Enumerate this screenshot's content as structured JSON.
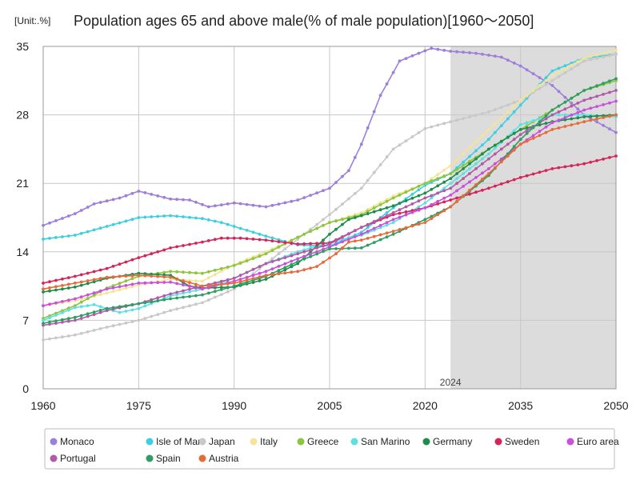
{
  "chart_data": {
    "type": "line",
    "unit_label": "[Unit:.%]",
    "title": "Population ages 65 and above male(% of male population)[1960～2050]",
    "xlabel": "",
    "ylabel": "",
    "xlim": [
      1960,
      2050
    ],
    "ylim": [
      0,
      35
    ],
    "x_ticks": [
      1960,
      1975,
      1990,
      2005,
      2020,
      2035,
      2050
    ],
    "y_ticks": [
      0,
      7,
      14,
      21,
      28,
      35
    ],
    "grid": true,
    "projection_start": 2024,
    "projection_label": "2024",
    "legend_position": "bottom",
    "series": [
      {
        "name": "Monaco",
        "color": "#9d7fdb",
        "points": [
          [
            1960,
            16.7
          ],
          [
            1965,
            17.9
          ],
          [
            1968,
            18.9
          ],
          [
            1972,
            19.5
          ],
          [
            1975,
            20.2
          ],
          [
            1980,
            19.4
          ],
          [
            1983,
            19.3
          ],
          [
            1986,
            18.6
          ],
          [
            1990,
            19.0
          ],
          [
            1995,
            18.6
          ],
          [
            2000,
            19.3
          ],
          [
            2005,
            20.5
          ],
          [
            2008,
            22.3
          ],
          [
            2010,
            25.0
          ],
          [
            2013,
            30.0
          ],
          [
            2016,
            33.5
          ],
          [
            2019,
            34.3
          ],
          [
            2021,
            34.8
          ],
          [
            2024,
            34.5
          ],
          [
            2028,
            34.3
          ],
          [
            2032,
            33.9
          ],
          [
            2035,
            33.0
          ],
          [
            2040,
            31.0
          ],
          [
            2045,
            28.0
          ],
          [
            2050,
            26.2
          ]
        ]
      },
      {
        "name": "Isle of Man",
        "color": "#3ccfe0",
        "points": [
          [
            1960,
            15.3
          ],
          [
            1965,
            15.7
          ],
          [
            1970,
            16.6
          ],
          [
            1975,
            17.5
          ],
          [
            1980,
            17.7
          ],
          [
            1985,
            17.4
          ],
          [
            1988,
            17.0
          ],
          [
            1990,
            16.6
          ],
          [
            1995,
            15.6
          ],
          [
            2000,
            14.7
          ],
          [
            2005,
            14.6
          ],
          [
            2010,
            16.0
          ],
          [
            2015,
            18.5
          ],
          [
            2020,
            20.8
          ],
          [
            2024,
            22.0
          ],
          [
            2030,
            25.5
          ],
          [
            2035,
            29.0
          ],
          [
            2040,
            32.5
          ],
          [
            2045,
            33.8
          ],
          [
            2050,
            34.2
          ]
        ]
      },
      {
        "name": "Japan",
        "color": "#c8c8c8",
        "points": [
          [
            1960,
            5.0
          ],
          [
            1965,
            5.5
          ],
          [
            1970,
            6.3
          ],
          [
            1975,
            7.0
          ],
          [
            1980,
            8.0
          ],
          [
            1985,
            8.8
          ],
          [
            1990,
            10.2
          ],
          [
            1995,
            12.8
          ],
          [
            2000,
            15.3
          ],
          [
            2005,
            17.8
          ],
          [
            2010,
            20.5
          ],
          [
            2015,
            24.5
          ],
          [
            2020,
            26.6
          ],
          [
            2024,
            27.3
          ],
          [
            2030,
            28.3
          ],
          [
            2035,
            29.5
          ],
          [
            2040,
            31.5
          ],
          [
            2045,
            33.5
          ],
          [
            2050,
            34.2
          ]
        ]
      },
      {
        "name": "Italy",
        "color": "#f3e49a",
        "points": [
          [
            1960,
            8.5
          ],
          [
            1965,
            9.0
          ],
          [
            1970,
            9.8
          ],
          [
            1975,
            10.6
          ],
          [
            1980,
            11.2
          ],
          [
            1985,
            11.0
          ],
          [
            1990,
            12.7
          ],
          [
            1995,
            14.0
          ],
          [
            2000,
            15.5
          ],
          [
            2005,
            17.0
          ],
          [
            2010,
            18.0
          ],
          [
            2015,
            19.7
          ],
          [
            2020,
            21.0
          ],
          [
            2024,
            22.8
          ],
          [
            2030,
            26.5
          ],
          [
            2035,
            29.5
          ],
          [
            2040,
            32.0
          ],
          [
            2045,
            33.8
          ],
          [
            2050,
            34.6
          ]
        ]
      },
      {
        "name": "Greece",
        "color": "#8cc63f",
        "points": [
          [
            1960,
            7.2
          ],
          [
            1965,
            8.5
          ],
          [
            1970,
            10.3
          ],
          [
            1975,
            11.5
          ],
          [
            1980,
            12.0
          ],
          [
            1985,
            11.8
          ],
          [
            1990,
            12.6
          ],
          [
            1995,
            13.8
          ],
          [
            2000,
            15.5
          ],
          [
            2005,
            17.0
          ],
          [
            2010,
            17.8
          ],
          [
            2015,
            19.5
          ],
          [
            2020,
            21.0
          ],
          [
            2024,
            22.0
          ],
          [
            2030,
            24.5
          ],
          [
            2035,
            26.5
          ],
          [
            2040,
            28.5
          ],
          [
            2045,
            30.5
          ],
          [
            2050,
            31.5
          ]
        ]
      },
      {
        "name": "San Marino",
        "color": "#5ee0e0",
        "points": [
          [
            1960,
            7.0
          ],
          [
            1965,
            8.3
          ],
          [
            1968,
            8.6
          ],
          [
            1972,
            7.8
          ],
          [
            1975,
            8.2
          ],
          [
            1980,
            9.5
          ],
          [
            1985,
            10.2
          ],
          [
            1990,
            11.3
          ],
          [
            1995,
            12.8
          ],
          [
            2000,
            14.0
          ],
          [
            2005,
            15.0
          ],
          [
            2010,
            15.7
          ],
          [
            2015,
            17.0
          ],
          [
            2020,
            19.0
          ],
          [
            2024,
            21.0
          ],
          [
            2030,
            24.0
          ],
          [
            2035,
            27.0
          ],
          [
            2040,
            28.0
          ],
          [
            2045,
            28.0
          ],
          [
            2050,
            27.8
          ]
        ]
      },
      {
        "name": "Germany",
        "color": "#1e8c4a",
        "points": [
          [
            1960,
            9.9
          ],
          [
            1965,
            10.4
          ],
          [
            1970,
            11.3
          ],
          [
            1975,
            11.8
          ],
          [
            1980,
            11.6
          ],
          [
            1983,
            10.5
          ],
          [
            1985,
            10.3
          ],
          [
            1990,
            10.4
          ],
          [
            1995,
            11.2
          ],
          [
            2000,
            12.8
          ],
          [
            2005,
            15.8
          ],
          [
            2008,
            17.3
          ],
          [
            2010,
            17.7
          ],
          [
            2015,
            18.7
          ],
          [
            2020,
            20.0
          ],
          [
            2024,
            21.5
          ],
          [
            2030,
            24.5
          ],
          [
            2035,
            26.5
          ],
          [
            2040,
            27.3
          ],
          [
            2045,
            27.8
          ],
          [
            2050,
            28.0
          ]
        ]
      },
      {
        "name": "Sweden",
        "color": "#d6245a",
        "points": [
          [
            1960,
            10.8
          ],
          [
            1965,
            11.5
          ],
          [
            1970,
            12.3
          ],
          [
            1975,
            13.4
          ],
          [
            1980,
            14.4
          ],
          [
            1985,
            15.0
          ],
          [
            1988,
            15.4
          ],
          [
            1991,
            15.4
          ],
          [
            1995,
            15.2
          ],
          [
            2000,
            14.8
          ],
          [
            2005,
            14.9
          ],
          [
            2010,
            16.5
          ],
          [
            2015,
            17.8
          ],
          [
            2020,
            18.5
          ],
          [
            2024,
            19.3
          ],
          [
            2030,
            20.5
          ],
          [
            2035,
            21.6
          ],
          [
            2040,
            22.5
          ],
          [
            2045,
            23.0
          ],
          [
            2050,
            23.8
          ]
        ]
      },
      {
        "name": "Euro area",
        "color": "#c94fdc",
        "points": [
          [
            1960,
            8.5
          ],
          [
            1965,
            9.2
          ],
          [
            1970,
            10.2
          ],
          [
            1975,
            10.8
          ],
          [
            1980,
            10.9
          ],
          [
            1985,
            10.2
          ],
          [
            1990,
            11.0
          ],
          [
            1995,
            12.0
          ],
          [
            2000,
            13.3
          ],
          [
            2005,
            14.5
          ],
          [
            2010,
            15.8
          ],
          [
            2015,
            17.3
          ],
          [
            2020,
            18.5
          ],
          [
            2024,
            19.8
          ],
          [
            2030,
            22.5
          ],
          [
            2035,
            25.0
          ],
          [
            2040,
            27.2
          ],
          [
            2045,
            28.5
          ],
          [
            2050,
            29.4
          ]
        ]
      },
      {
        "name": "Portugal",
        "color": "#b25aa8",
        "points": [
          [
            1960,
            6.5
          ],
          [
            1965,
            7.0
          ],
          [
            1970,
            8.0
          ],
          [
            1975,
            8.7
          ],
          [
            1980,
            9.7
          ],
          [
            1985,
            10.5
          ],
          [
            1990,
            11.3
          ],
          [
            1995,
            12.8
          ],
          [
            2000,
            13.8
          ],
          [
            2005,
            14.8
          ],
          [
            2010,
            16.5
          ],
          [
            2015,
            18.0
          ],
          [
            2020,
            19.5
          ],
          [
            2024,
            20.5
          ],
          [
            2030,
            23.5
          ],
          [
            2035,
            26.0
          ],
          [
            2040,
            28.0
          ],
          [
            2045,
            29.5
          ],
          [
            2050,
            30.5
          ]
        ]
      },
      {
        "name": "Spain",
        "color": "#2e9e62",
        "points": [
          [
            1960,
            6.7
          ],
          [
            1965,
            7.3
          ],
          [
            1970,
            8.2
          ],
          [
            1975,
            8.7
          ],
          [
            1980,
            9.2
          ],
          [
            1985,
            9.6
          ],
          [
            1990,
            10.5
          ],
          [
            1995,
            11.5
          ],
          [
            2000,
            13.0
          ],
          [
            2005,
            14.3
          ],
          [
            2010,
            14.4
          ],
          [
            2015,
            15.8
          ],
          [
            2020,
            17.3
          ],
          [
            2024,
            18.6
          ],
          [
            2030,
            21.8
          ],
          [
            2035,
            25.5
          ],
          [
            2040,
            28.5
          ],
          [
            2045,
            30.5
          ],
          [
            2050,
            31.7
          ]
        ]
      },
      {
        "name": "Austria",
        "color": "#e86a3a",
        "points": [
          [
            1960,
            10.2
          ],
          [
            1965,
            10.8
          ],
          [
            1970,
            11.4
          ],
          [
            1975,
            11.6
          ],
          [
            1980,
            11.4
          ],
          [
            1985,
            10.5
          ],
          [
            1990,
            10.8
          ],
          [
            1995,
            11.6
          ],
          [
            2000,
            12.0
          ],
          [
            2003,
            12.5
          ],
          [
            2006,
            13.8
          ],
          [
            2008,
            15.0
          ],
          [
            2010,
            15.2
          ],
          [
            2015,
            16.1
          ],
          [
            2020,
            17.0
          ],
          [
            2024,
            18.6
          ],
          [
            2030,
            22.0
          ],
          [
            2035,
            25.0
          ],
          [
            2040,
            26.5
          ],
          [
            2045,
            27.3
          ],
          [
            2050,
            28.0
          ]
        ]
      }
    ]
  }
}
